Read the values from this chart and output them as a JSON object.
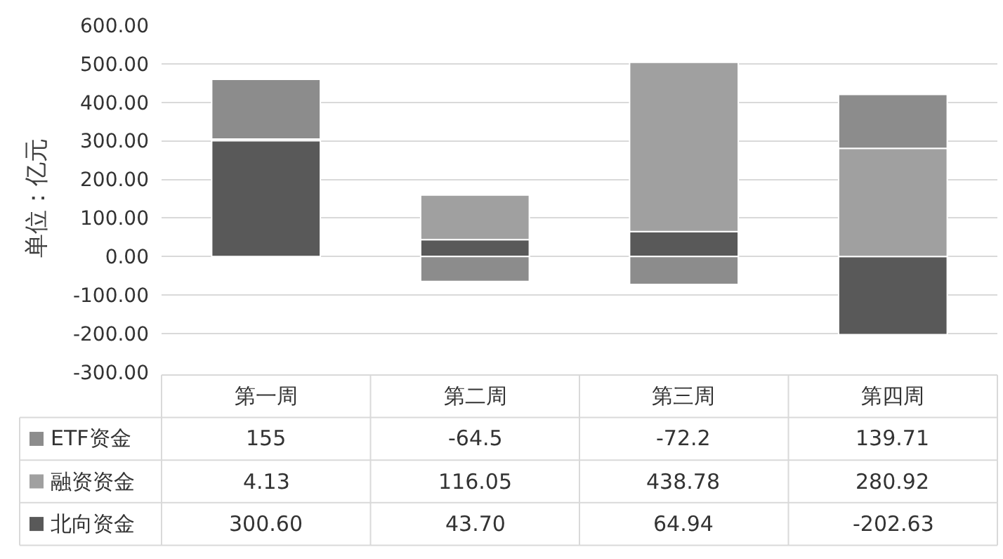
{
  "chart_data": {
    "type": "bar",
    "stacked": true,
    "ylabel": "单位：亿元",
    "categories": [
      "第一周",
      "第二周",
      "第三周",
      "第四周"
    ],
    "series": [
      {
        "name": "北向资金",
        "color": "#595959",
        "values": [
          300.6,
          43.7,
          64.94,
          -202.63
        ],
        "value_labels": [
          "300.60",
          "43.70",
          "64.94",
          "-202.63"
        ]
      },
      {
        "name": "融资资金",
        "color": "#a0a0a0",
        "values": [
          4.13,
          116.05,
          438.78,
          280.92
        ],
        "value_labels": [
          "4.13",
          "116.05",
          "438.78",
          "280.92"
        ]
      },
      {
        "name": "ETF资金",
        "color": "#8c8c8c",
        "values": [
          155,
          -64.5,
          -72.2,
          139.71
        ],
        "value_labels": [
          "155",
          "-64.5",
          "-72.2",
          "139.71"
        ]
      }
    ],
    "ylim": [
      -300,
      600
    ],
    "yticks": [
      {
        "value": -300,
        "label": "-300.00"
      },
      {
        "value": -200,
        "label": "-200.00"
      },
      {
        "value": -100,
        "label": "-100.00"
      },
      {
        "value": 0,
        "label": "0.00"
      },
      {
        "value": 100,
        "label": "100.00"
      },
      {
        "value": 200,
        "label": "200.00"
      },
      {
        "value": 300,
        "label": "300.00"
      },
      {
        "value": 400,
        "label": "400.00"
      },
      {
        "value": 500,
        "label": "500.00"
      },
      {
        "value": 600,
        "label": "600.00"
      }
    ],
    "grid": "y",
    "legend": "bottom left"
  }
}
